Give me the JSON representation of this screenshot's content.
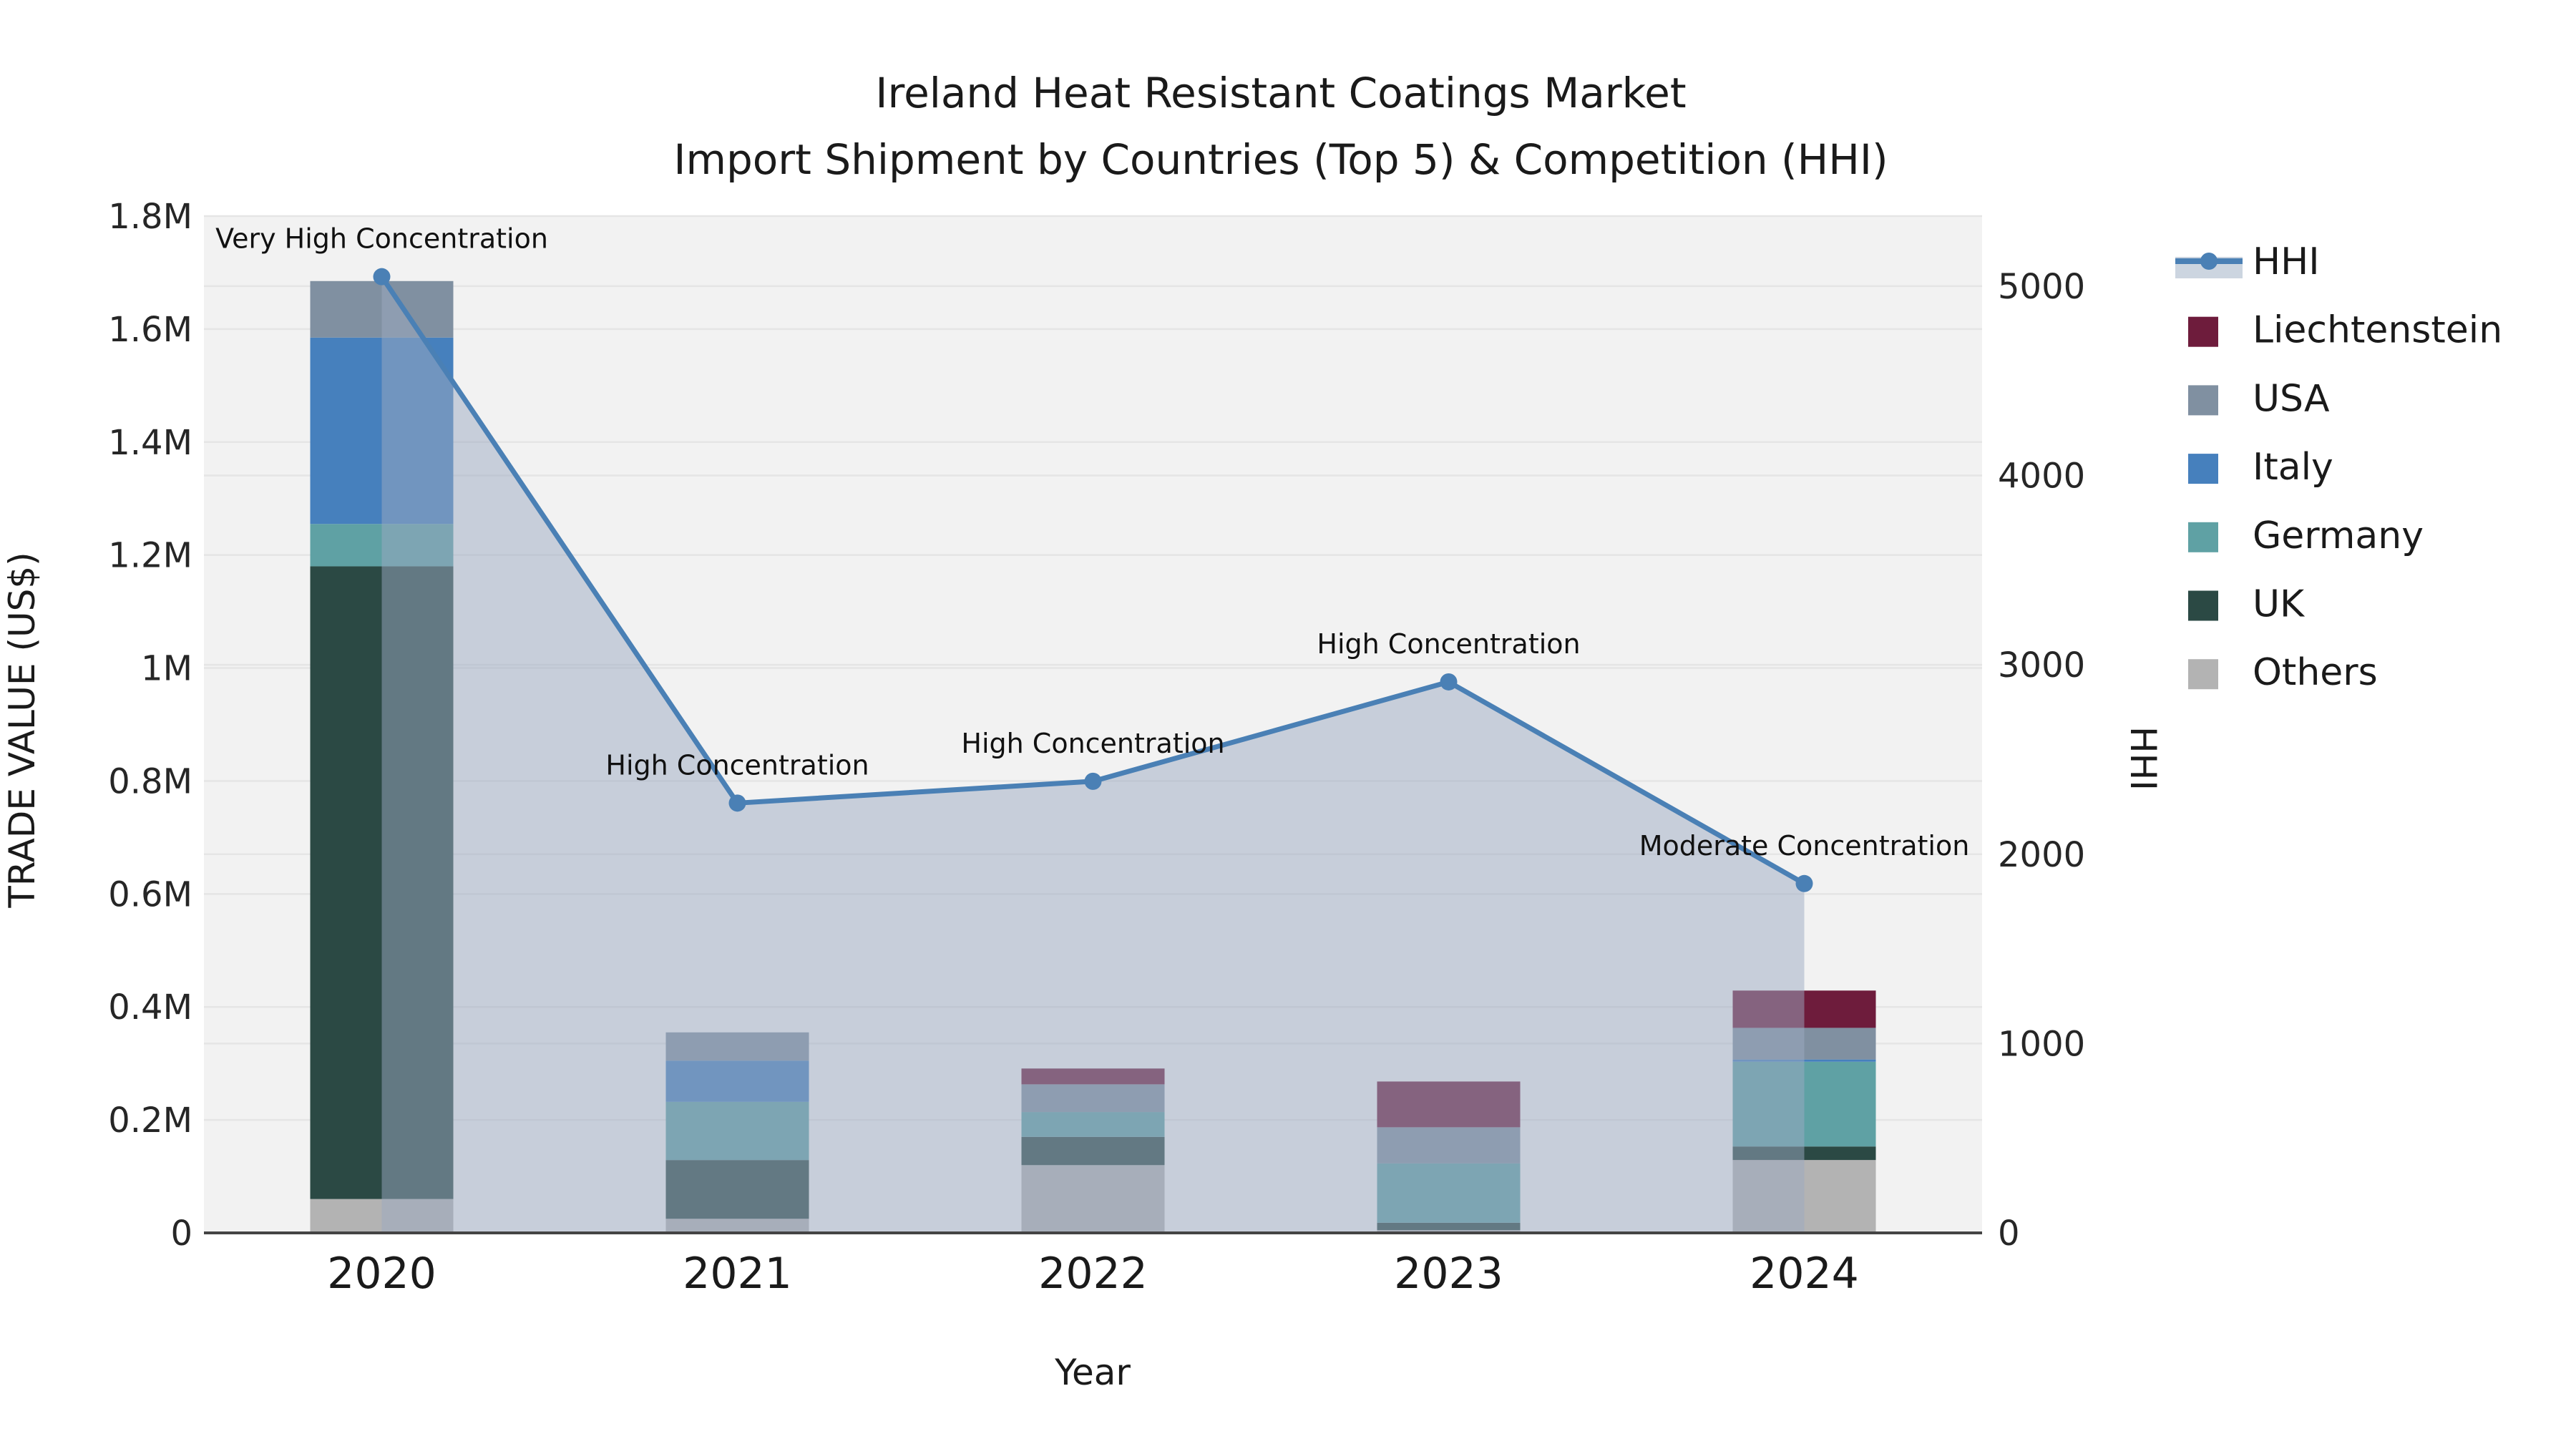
{
  "title": {
    "line1": "Ireland Heat Resistant Coatings Market",
    "line2": "Import Shipment by Countries (Top 5) & Competition (HHI)"
  },
  "axes": {
    "x_label": "Year",
    "y_left_label": "TRADE VALUE (US$)",
    "y_right_label": "HHI"
  },
  "chart_data": {
    "type": "bar+line",
    "title": "Ireland Heat Resistant Coatings Market — Import Shipment by Countries (Top 5) & Competition (HHI)",
    "categories": [
      "2020",
      "2021",
      "2022",
      "2023",
      "2024"
    ],
    "stack_order_bottom_to_top": [
      "Others",
      "UK",
      "Germany",
      "Italy",
      "USA",
      "Liechtenstein"
    ],
    "series": [
      {
        "name": "Liechtenstein",
        "color": "#6e1c3c",
        "values": [
          0,
          0,
          28000,
          81000,
          66000
        ]
      },
      {
        "name": "USA",
        "color": "#8090a1",
        "values": [
          100000,
          50000,
          49000,
          64000,
          56000
        ]
      },
      {
        "name": "Italy",
        "color": "#4680bd",
        "values": [
          330000,
          73000,
          0,
          0,
          4000
        ]
      },
      {
        "name": "Germany",
        "color": "#5fa1a4",
        "values": [
          75000,
          103000,
          44000,
          105000,
          150000
        ]
      },
      {
        "name": "UK",
        "color": "#2b4944",
        "values": [
          1120000,
          104000,
          50000,
          13000,
          24000
        ]
      },
      {
        "name": "Others",
        "color": "#b3b3b3",
        "values": [
          60000,
          25000,
          120000,
          5000,
          129000
        ]
      }
    ],
    "line_series": {
      "name": "HHI",
      "color": "#4a80b5",
      "area_color": "rgba(155,170,193,0.5)",
      "values": [
        5050,
        2270,
        2385,
        2910,
        1845
      ]
    },
    "annotations": [
      {
        "category": "2020",
        "text": "Very High Concentration"
      },
      {
        "category": "2021",
        "text": "High Concentration"
      },
      {
        "category": "2022",
        "text": "High Concentration"
      },
      {
        "category": "2023",
        "text": "High Concentration"
      },
      {
        "category": "2024",
        "text": "Moderate Concentration"
      }
    ],
    "y_left_ticks": [
      {
        "value": 0,
        "label": "0"
      },
      {
        "value": 200000,
        "label": "0.2M"
      },
      {
        "value": 400000,
        "label": "0.4M"
      },
      {
        "value": 600000,
        "label": "0.6M"
      },
      {
        "value": 800000,
        "label": "0.8M"
      },
      {
        "value": 1000000,
        "label": "1M"
      },
      {
        "value": 1200000,
        "label": "1.2M"
      },
      {
        "value": 1400000,
        "label": "1.4M"
      },
      {
        "value": 1600000,
        "label": "1.6M"
      },
      {
        "value": 1800000,
        "label": "1.8M"
      }
    ],
    "y_right_ticks": [
      {
        "value": 0,
        "label": "0"
      },
      {
        "value": 1000,
        "label": "1000"
      },
      {
        "value": 2000,
        "label": "2000"
      },
      {
        "value": 3000,
        "label": "3000"
      },
      {
        "value": 4000,
        "label": "4000"
      },
      {
        "value": 5000,
        "label": "5000"
      }
    ],
    "ylim_left": [
      0,
      1800000
    ],
    "ylim_right": [
      0,
      5370
    ],
    "grid": true,
    "legend_position": "right"
  },
  "legend": {
    "items": [
      {
        "label": "HHI",
        "type": "line",
        "color": "#4a80b5",
        "band": "#ccd5e0"
      },
      {
        "label": "Liechtenstein",
        "type": "swatch",
        "color": "#6e1c3c"
      },
      {
        "label": "USA",
        "type": "swatch",
        "color": "#8090a1"
      },
      {
        "label": "Italy",
        "type": "swatch",
        "color": "#4680bd"
      },
      {
        "label": "Germany",
        "type": "swatch",
        "color": "#5fa1a4"
      },
      {
        "label": "UK",
        "type": "swatch",
        "color": "#2b4944"
      },
      {
        "label": "Others",
        "type": "swatch",
        "color": "#b3b3b3"
      }
    ]
  },
  "colors": {
    "plot_bg": "#f2f2f2",
    "grid": "#e5e5e5",
    "axis_line": "#444444",
    "text": "#1a1a1a"
  }
}
